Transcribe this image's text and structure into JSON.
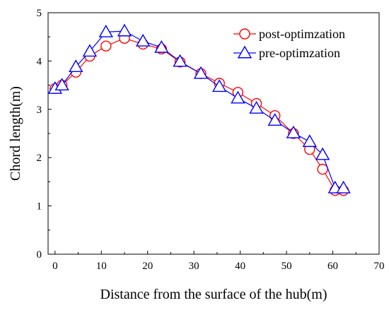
{
  "chart_data": {
    "type": "line",
    "title": "",
    "xlabel": "Distance from the surface of the hub(m)",
    "ylabel": "Chord length(m)",
    "xlim": [
      -1.5,
      70
    ],
    "ylim": [
      0,
      5
    ],
    "xticks": [
      0,
      10,
      20,
      30,
      40,
      50,
      60,
      70
    ],
    "yticks": [
      0,
      1,
      2,
      3,
      4,
      5
    ],
    "grid": false,
    "legend_position": "top-right",
    "series": [
      {
        "name": "post-optimzation",
        "color": "#ff0000",
        "marker": "circle",
        "x": [
          0,
          1.5,
          4.5,
          7.5,
          11,
          15,
          19,
          23,
          27,
          31.5,
          35.5,
          39.5,
          43.5,
          47.5,
          51.5,
          55,
          57.8,
          60.5,
          62.3
        ],
        "y": [
          3.43,
          3.5,
          3.77,
          4.1,
          4.31,
          4.47,
          4.35,
          4.25,
          3.98,
          3.74,
          3.54,
          3.35,
          3.12,
          2.87,
          2.5,
          2.17,
          1.76,
          1.32,
          1.32
        ]
      },
      {
        "name": "pre-optimzation",
        "color": "#0000ff",
        "marker": "triangle",
        "x": [
          0,
          1.5,
          4.5,
          7.5,
          11,
          15,
          19,
          23,
          27,
          31.5,
          35.5,
          39.5,
          43.5,
          47.5,
          51.5,
          55,
          57.8,
          60.5,
          62.3
        ],
        "y": [
          3.43,
          3.5,
          3.88,
          4.2,
          4.6,
          4.62,
          4.41,
          4.28,
          3.99,
          3.74,
          3.47,
          3.23,
          3.02,
          2.77,
          2.51,
          2.33,
          2.06,
          1.37,
          1.37
        ]
      }
    ]
  }
}
